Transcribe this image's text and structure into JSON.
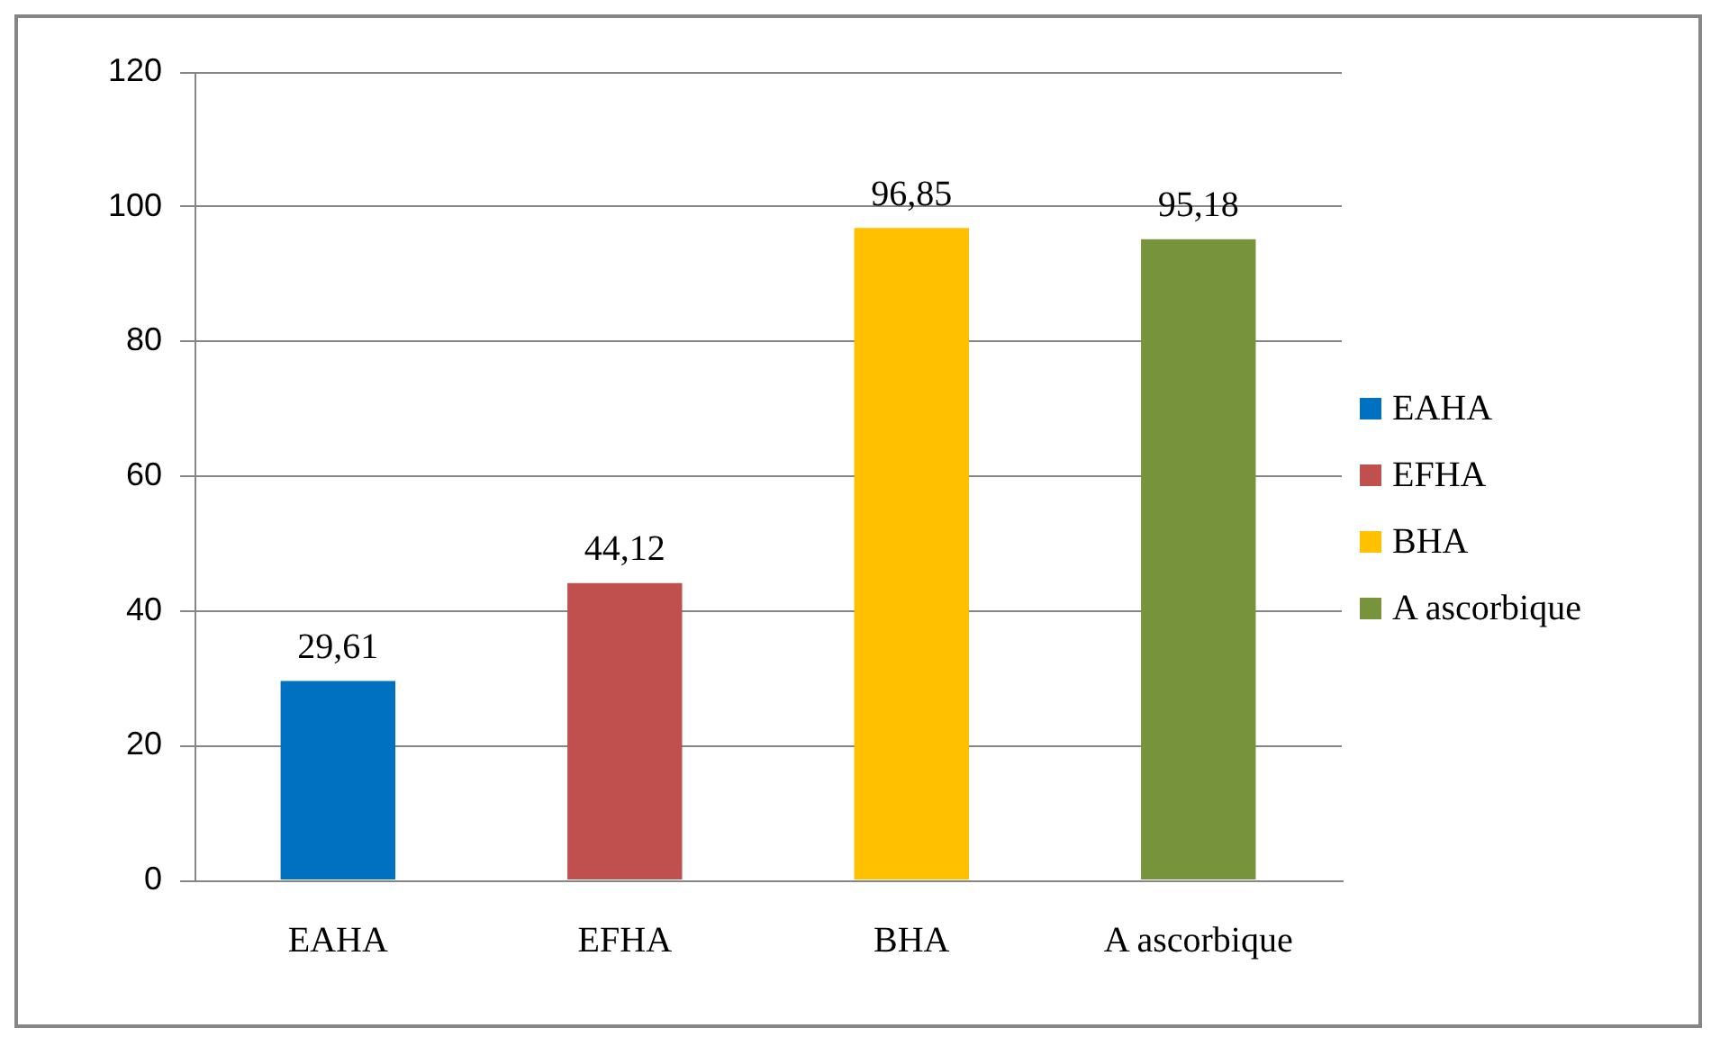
{
  "chart_data": {
    "type": "bar",
    "categories": [
      "EAHA",
      "EFHA",
      "BHA",
      "A ascorbique"
    ],
    "series": [
      {
        "name": "EAHA",
        "color": "#0070c0",
        "values": [
          29.61,
          null,
          null,
          null
        ],
        "value_labels": [
          "29,61",
          null,
          null,
          null
        ]
      },
      {
        "name": "EFHA",
        "color": "#c0504d",
        "values": [
          null,
          44.12,
          null,
          null
        ],
        "value_labels": [
          null,
          "44,12",
          null,
          null
        ]
      },
      {
        "name": "BHA",
        "color": "#ffc000",
        "values": [
          null,
          null,
          96.85,
          null
        ],
        "value_labels": [
          null,
          null,
          "96,85",
          null
        ]
      },
      {
        "name": "A ascorbique",
        "color": "#77933c",
        "values": [
          null,
          null,
          null,
          95.18
        ],
        "value_labels": [
          null,
          null,
          null,
          "95,18"
        ]
      }
    ],
    "ylim": [
      0,
      120
    ],
    "yticks": [
      0,
      20,
      40,
      60,
      80,
      100,
      120
    ],
    "grid": "y",
    "legend": "right"
  }
}
